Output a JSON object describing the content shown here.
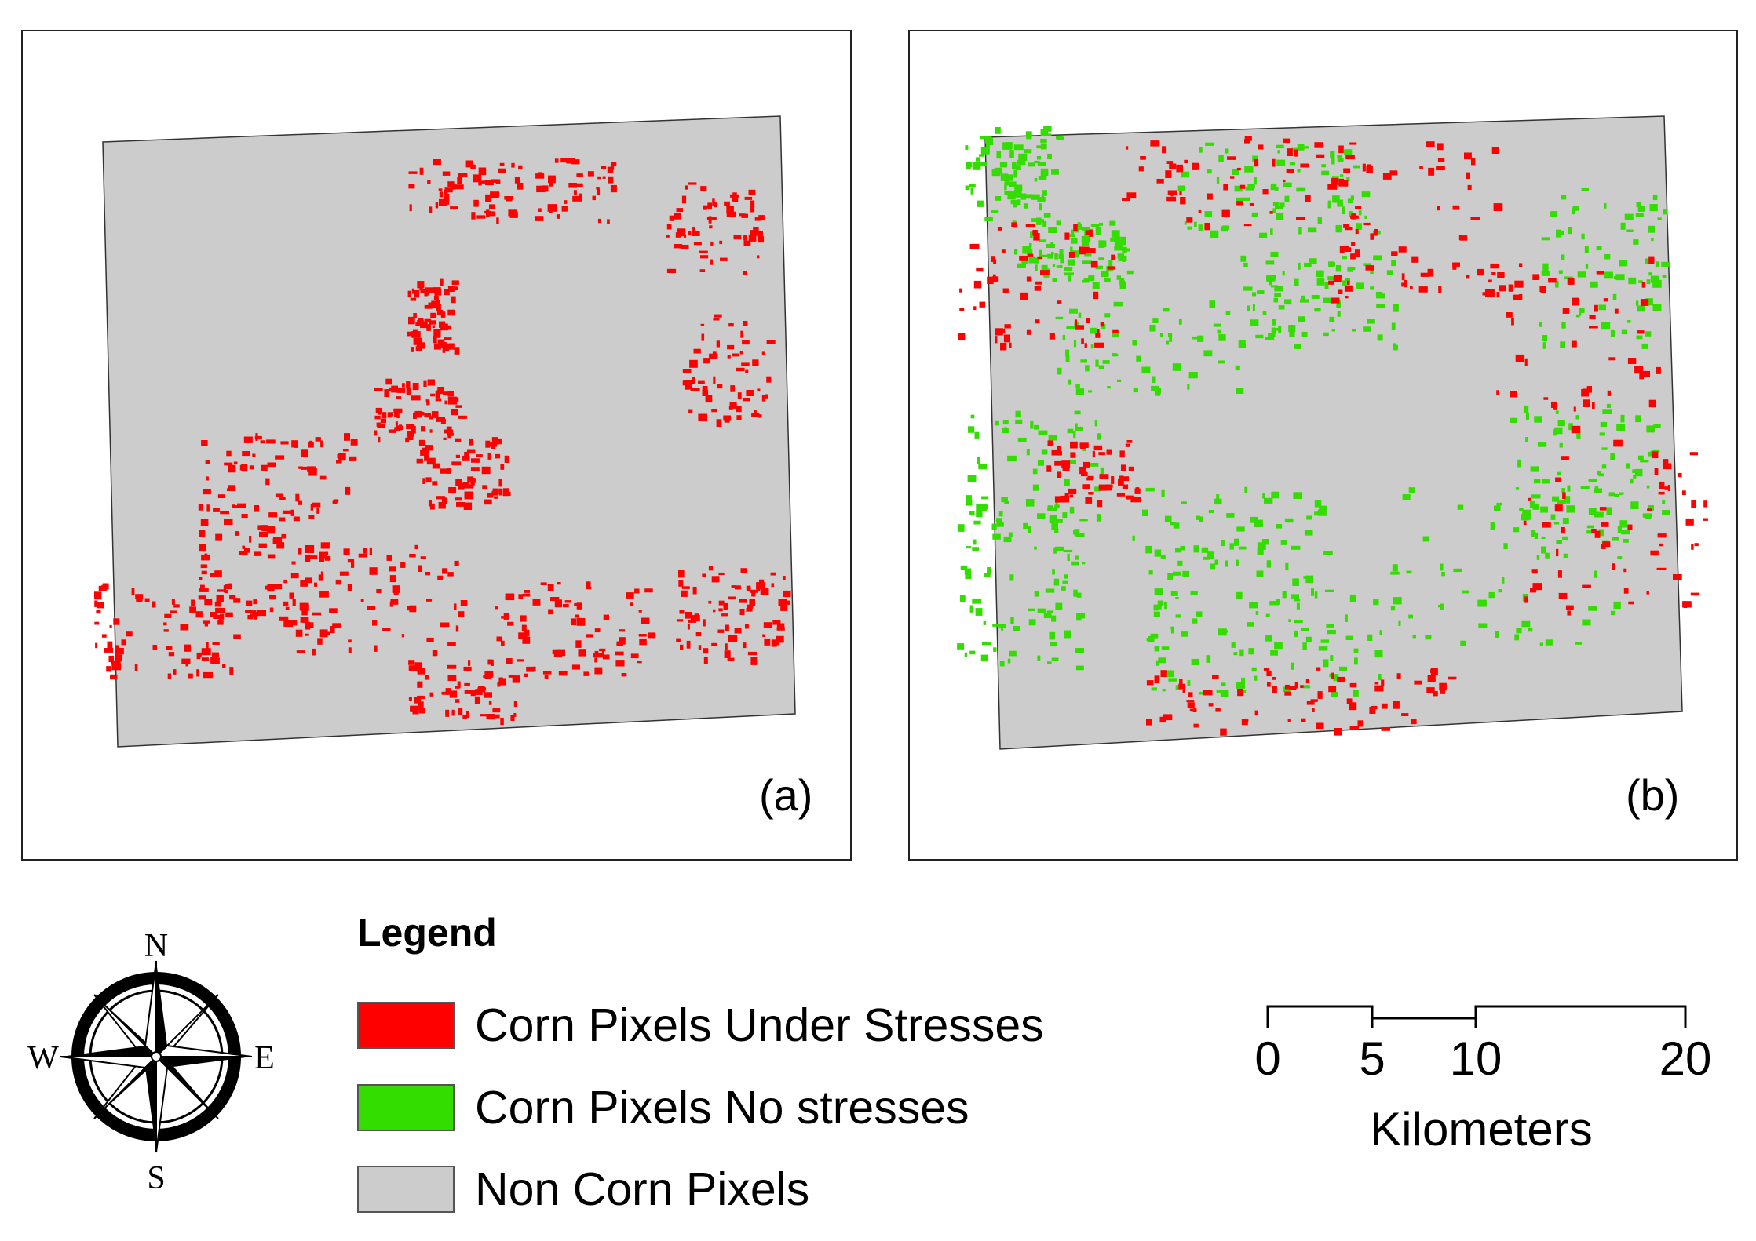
{
  "panels": [
    {
      "id": "a",
      "label": "(a)",
      "content": "corn pixels under stresses only"
    },
    {
      "id": "b",
      "label": "(b)",
      "content": "corn pixels under stresses and no stresses"
    }
  ],
  "legend": {
    "title": "Legend",
    "items": [
      {
        "label": "Corn Pixels Under Stresses",
        "color": "#ff0000"
      },
      {
        "label": "Corn Pixels No stresses",
        "color": "#33dd00"
      },
      {
        "label": "Non Corn Pixels",
        "color": "#cccccc"
      }
    ]
  },
  "compass": {
    "north": "N",
    "south": "S",
    "east": "E",
    "west": "W"
  },
  "scale_bar": {
    "ticks": [
      0,
      5,
      10,
      20
    ],
    "tick_labels": [
      "0",
      "5",
      "10",
      "20"
    ],
    "unit": "Kilometers"
  },
  "colors": {
    "stressed": "#ff0000",
    "unstressed": "#33dd00",
    "non_corn": "#cccccc",
    "frame": "#222222"
  }
}
